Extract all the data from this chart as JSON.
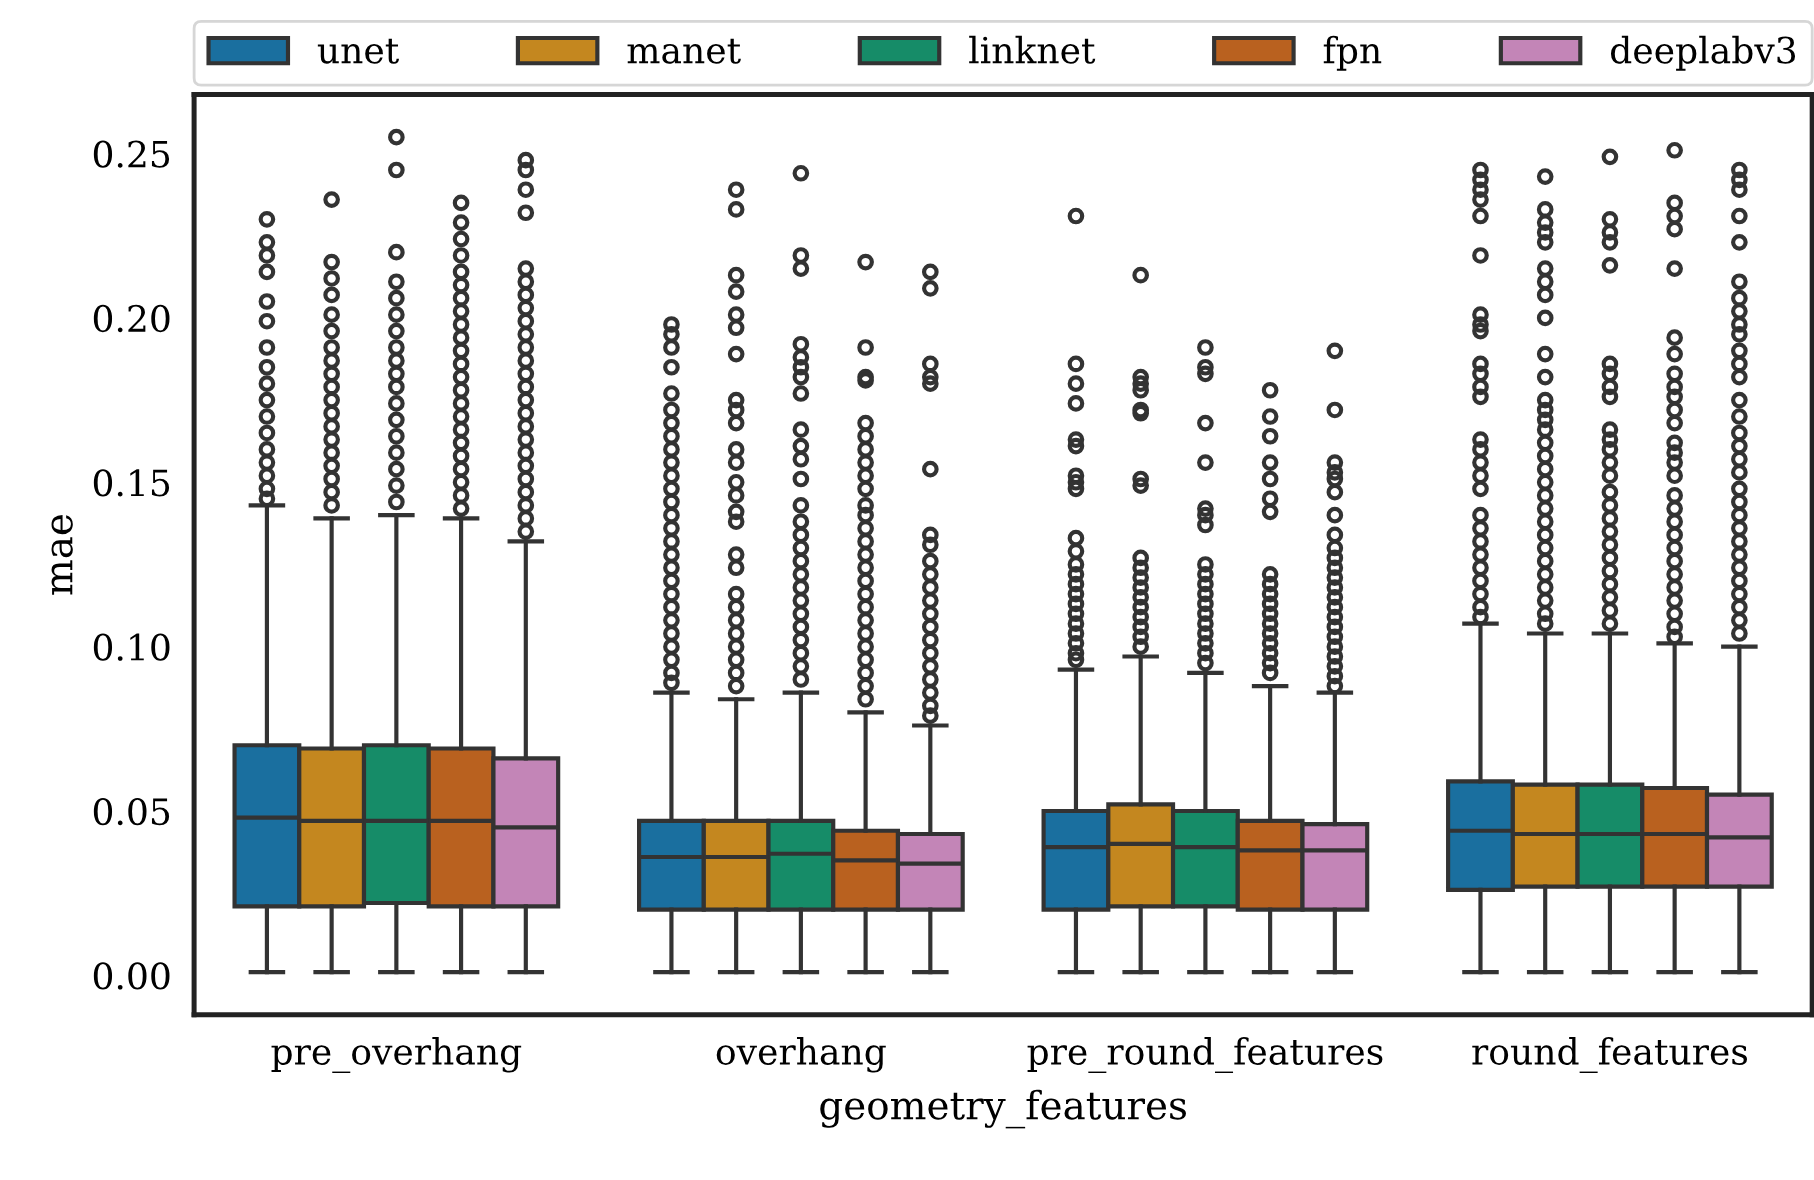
{
  "chart_data": {
    "type": "box",
    "xlabel": "geometry_features",
    "ylabel": "mae",
    "categories": [
      "pre_overhang",
      "overhang",
      "pre_round_features",
      "round_features"
    ],
    "ylim": [
      -0.012,
      0.268
    ],
    "yticks": [
      {
        "value": 0,
        "label": "0.00"
      },
      {
        "value": 0.05,
        "label": "0.05"
      },
      {
        "value": 0.1,
        "label": "0.10"
      },
      {
        "value": 0.15,
        "label": "0.15"
      },
      {
        "value": 0.2,
        "label": "0.20"
      },
      {
        "value": 0.25,
        "label": "0.25"
      }
    ],
    "legend": "top",
    "grid": false,
    "series": [
      {
        "name": "unet",
        "color": "#1a6f9f",
        "boxes": [
          {
            "low": 0.001,
            "q1": 0.021,
            "median": 0.048,
            "q3": 0.07,
            "high": 0.143,
            "outliers": [
              0.23,
              0.223,
              0.219,
              0.214,
              0.205,
              0.199,
              0.191,
              0.185,
              0.18,
              0.175,
              0.17,
              0.165,
              0.16,
              0.156,
              0.152,
              0.148,
              0.145
            ]
          },
          {
            "low": 0.001,
            "q1": 0.02,
            "median": 0.036,
            "q3": 0.047,
            "high": 0.086,
            "outliers": [
              0.198,
              0.195,
              0.191,
              0.185,
              0.177,
              0.172,
              0.168,
              0.164,
              0.16,
              0.156,
              0.152,
              0.148,
              0.144,
              0.14,
              0.136,
              0.132,
              0.128,
              0.124,
              0.12,
              0.116,
              0.112,
              0.108,
              0.104,
              0.1,
              0.096,
              0.092,
              0.089
            ]
          },
          {
            "low": 0.001,
            "q1": 0.02,
            "median": 0.039,
            "q3": 0.05,
            "high": 0.093,
            "outliers": [
              0.231,
              0.186,
              0.18,
              0.174,
              0.163,
              0.161,
              0.152,
              0.15,
              0.148,
              0.133,
              0.129,
              0.125,
              0.122,
              0.119,
              0.116,
              0.113,
              0.11,
              0.107,
              0.104,
              0.101,
              0.098,
              0.096
            ]
          },
          {
            "low": 0.001,
            "q1": 0.026,
            "median": 0.044,
            "q3": 0.059,
            "high": 0.107,
            "outliers": [
              0.245,
              0.242,
              0.239,
              0.236,
              0.231,
              0.219,
              0.201,
              0.198,
              0.196,
              0.186,
              0.183,
              0.179,
              0.176,
              0.163,
              0.16,
              0.156,
              0.152,
              0.148,
              0.14,
              0.136,
              0.132,
              0.128,
              0.124,
              0.12,
              0.116,
              0.112,
              0.109
            ]
          }
        ]
      },
      {
        "name": "manet",
        "color": "#c4871f",
        "boxes": [
          {
            "low": 0.001,
            "q1": 0.021,
            "median": 0.047,
            "q3": 0.069,
            "high": 0.139,
            "outliers": [
              0.236,
              0.217,
              0.212,
              0.207,
              0.201,
              0.196,
              0.191,
              0.187,
              0.183,
              0.179,
              0.175,
              0.171,
              0.167,
              0.163,
              0.159,
              0.155,
              0.151,
              0.147,
              0.143
            ]
          },
          {
            "low": 0.001,
            "q1": 0.02,
            "median": 0.036,
            "q3": 0.047,
            "high": 0.084,
            "outliers": [
              0.239,
              0.233,
              0.213,
              0.208,
              0.201,
              0.197,
              0.189,
              0.175,
              0.172,
              0.168,
              0.16,
              0.156,
              0.15,
              0.146,
              0.141,
              0.138,
              0.128,
              0.124,
              0.116,
              0.112,
              0.108,
              0.104,
              0.1,
              0.096,
              0.092,
              0.088
            ]
          },
          {
            "low": 0.001,
            "q1": 0.021,
            "median": 0.04,
            "q3": 0.052,
            "high": 0.097,
            "outliers": [
              0.213,
              0.182,
              0.18,
              0.178,
              0.172,
              0.171,
              0.151,
              0.149,
              0.127,
              0.124,
              0.121,
              0.118,
              0.115,
              0.112,
              0.109,
              0.106,
              0.103,
              0.1
            ]
          },
          {
            "low": 0.001,
            "q1": 0.027,
            "median": 0.043,
            "q3": 0.058,
            "high": 0.104,
            "outliers": [
              0.243,
              0.233,
              0.229,
              0.226,
              0.223,
              0.215,
              0.211,
              0.207,
              0.2,
              0.189,
              0.182,
              0.175,
              0.172,
              0.169,
              0.166,
              0.162,
              0.158,
              0.154,
              0.15,
              0.146,
              0.142,
              0.138,
              0.134,
              0.13,
              0.126,
              0.122,
              0.118,
              0.114,
              0.11,
              0.107
            ]
          }
        ]
      },
      {
        "name": "linknet",
        "color": "#168c68",
        "boxes": [
          {
            "low": 0.001,
            "q1": 0.022,
            "median": 0.047,
            "q3": 0.07,
            "high": 0.14,
            "outliers": [
              0.255,
              0.245,
              0.22,
              0.211,
              0.206,
              0.201,
              0.196,
              0.191,
              0.187,
              0.183,
              0.179,
              0.174,
              0.169,
              0.164,
              0.159,
              0.154,
              0.149,
              0.144
            ]
          },
          {
            "low": 0.001,
            "q1": 0.02,
            "median": 0.037,
            "q3": 0.047,
            "high": 0.086,
            "outliers": [
              0.244,
              0.219,
              0.215,
              0.192,
              0.188,
              0.185,
              0.182,
              0.177,
              0.166,
              0.161,
              0.157,
              0.151,
              0.143,
              0.138,
              0.134,
              0.13,
              0.126,
              0.122,
              0.118,
              0.114,
              0.11,
              0.106,
              0.102,
              0.098,
              0.094,
              0.09
            ]
          },
          {
            "low": 0.001,
            "q1": 0.021,
            "median": 0.039,
            "q3": 0.05,
            "high": 0.092,
            "outliers": [
              0.191,
              0.185,
              0.183,
              0.168,
              0.156,
              0.142,
              0.14,
              0.137,
              0.125,
              0.122,
              0.119,
              0.116,
              0.113,
              0.11,
              0.107,
              0.104,
              0.101,
              0.098,
              0.095
            ]
          },
          {
            "low": 0.001,
            "q1": 0.027,
            "median": 0.043,
            "q3": 0.058,
            "high": 0.104,
            "outliers": [
              0.249,
              0.23,
              0.226,
              0.223,
              0.216,
              0.186,
              0.183,
              0.179,
              0.176,
              0.166,
              0.163,
              0.16,
              0.156,
              0.152,
              0.147,
              0.143,
              0.139,
              0.135,
              0.131,
              0.127,
              0.123,
              0.119,
              0.115,
              0.111,
              0.107
            ]
          }
        ]
      },
      {
        "name": "fpn",
        "color": "#b9611f",
        "boxes": [
          {
            "low": 0.001,
            "q1": 0.021,
            "median": 0.047,
            "q3": 0.069,
            "high": 0.139,
            "outliers": [
              0.235,
              0.229,
              0.224,
              0.219,
              0.214,
              0.21,
              0.206,
              0.202,
              0.198,
              0.194,
              0.19,
              0.186,
              0.182,
              0.178,
              0.174,
              0.17,
              0.166,
              0.162,
              0.158,
              0.154,
              0.15,
              0.146,
              0.142
            ]
          },
          {
            "low": 0.001,
            "q1": 0.02,
            "median": 0.035,
            "q3": 0.044,
            "high": 0.08,
            "outliers": [
              0.217,
              0.191,
              0.182,
              0.181,
              0.168,
              0.164,
              0.16,
              0.156,
              0.152,
              0.148,
              0.143,
              0.14,
              0.136,
              0.132,
              0.128,
              0.124,
              0.12,
              0.116,
              0.112,
              0.108,
              0.104,
              0.1,
              0.096,
              0.092,
              0.088,
              0.084
            ]
          },
          {
            "low": 0.001,
            "q1": 0.02,
            "median": 0.038,
            "q3": 0.047,
            "high": 0.088,
            "outliers": [
              0.178,
              0.17,
              0.164,
              0.156,
              0.151,
              0.145,
              0.141,
              0.122,
              0.119,
              0.116,
              0.113,
              0.11,
              0.107,
              0.104,
              0.101,
              0.098,
              0.095,
              0.092
            ]
          },
          {
            "low": 0.001,
            "q1": 0.027,
            "median": 0.043,
            "q3": 0.057,
            "high": 0.101,
            "outliers": [
              0.251,
              0.235,
              0.231,
              0.227,
              0.215,
              0.194,
              0.189,
              0.183,
              0.179,
              0.176,
              0.172,
              0.168,
              0.162,
              0.159,
              0.156,
              0.152,
              0.146,
              0.142,
              0.138,
              0.134,
              0.13,
              0.126,
              0.122,
              0.118,
              0.114,
              0.11,
              0.106,
              0.103
            ]
          }
        ]
      },
      {
        "name": "deeplabv3",
        "color": "#c385b7",
        "boxes": [
          {
            "low": 0.001,
            "q1": 0.021,
            "median": 0.045,
            "q3": 0.066,
            "high": 0.132,
            "outliers": [
              0.248,
              0.245,
              0.239,
              0.232,
              0.215,
              0.211,
              0.207,
              0.203,
              0.199,
              0.195,
              0.191,
              0.187,
              0.183,
              0.179,
              0.175,
              0.171,
              0.167,
              0.163,
              0.159,
              0.155,
              0.151,
              0.147,
              0.143,
              0.139,
              0.135
            ]
          },
          {
            "low": 0.001,
            "q1": 0.02,
            "median": 0.034,
            "q3": 0.043,
            "high": 0.076,
            "outliers": [
              0.214,
              0.209,
              0.186,
              0.182,
              0.18,
              0.154,
              0.134,
              0.131,
              0.126,
              0.122,
              0.118,
              0.114,
              0.11,
              0.106,
              0.102,
              0.098,
              0.094,
              0.09,
              0.086,
              0.082,
              0.079
            ]
          },
          {
            "low": 0.001,
            "q1": 0.02,
            "median": 0.038,
            "q3": 0.046,
            "high": 0.086,
            "outliers": [
              0.19,
              0.172,
              0.156,
              0.153,
              0.151,
              0.147,
              0.14,
              0.134,
              0.13,
              0.127,
              0.124,
              0.121,
              0.118,
              0.115,
              0.112,
              0.109,
              0.106,
              0.103,
              0.1,
              0.097,
              0.094,
              0.091,
              0.088
            ]
          },
          {
            "low": 0.001,
            "q1": 0.027,
            "median": 0.042,
            "q3": 0.055,
            "high": 0.1,
            "outliers": [
              0.245,
              0.242,
              0.239,
              0.231,
              0.223,
              0.211,
              0.206,
              0.202,
              0.198,
              0.195,
              0.19,
              0.186,
              0.182,
              0.175,
              0.17,
              0.165,
              0.161,
              0.157,
              0.153,
              0.148,
              0.144,
              0.14,
              0.136,
              0.132,
              0.128,
              0.124,
              0.12,
              0.116,
              0.112,
              0.108,
              0.104
            ]
          }
        ]
      }
    ]
  }
}
